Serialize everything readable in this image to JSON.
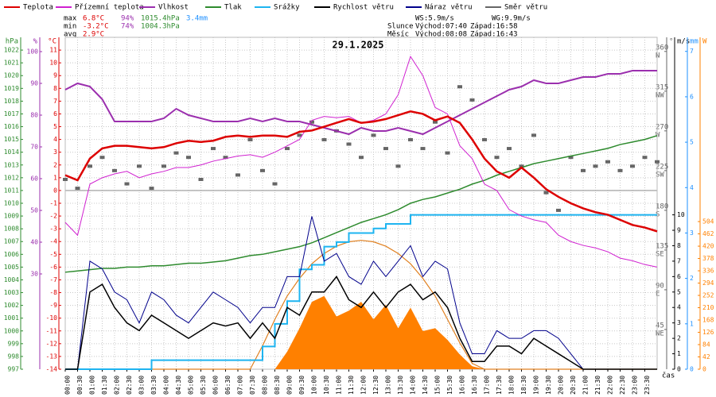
{
  "chart_data": {
    "type": "line",
    "title": "29.1.2025",
    "x_label": "čas",
    "x": [
      0,
      0.5,
      1,
      1.5,
      2,
      2.5,
      3,
      3.5,
      4,
      4.5,
      5,
      5.5,
      6,
      6.5,
      7,
      7.5,
      8,
      8.5,
      9,
      9.5,
      10,
      10.5,
      11,
      11.5,
      12,
      12.5,
      13,
      13.5,
      14,
      14.5,
      15,
      15.5,
      16,
      16.5,
      17,
      17.5,
      18,
      18.5,
      19,
      19.5,
      20,
      20.5,
      21,
      21.5,
      22,
      22.5,
      23,
      23.5,
      24
    ],
    "xlim": [
      0,
      24
    ],
    "xticks": [
      {
        "value": 0,
        "label": "00:00"
      },
      {
        "value": 0.5,
        "label": "00:30"
      },
      {
        "value": 1,
        "label": "01:00"
      },
      {
        "value": 1.5,
        "label": "01:30"
      },
      {
        "value": 2,
        "label": "02:00"
      },
      {
        "value": 2.5,
        "label": "02:30"
      },
      {
        "value": 3,
        "label": "03:00"
      },
      {
        "value": 3.5,
        "label": "03:30"
      },
      {
        "value": 4,
        "label": "04:00"
      },
      {
        "value": 4.5,
        "label": "04:30"
      },
      {
        "value": 5,
        "label": "05:00"
      },
      {
        "value": 5.5,
        "label": "05:30"
      },
      {
        "value": 6,
        "label": "06:00"
      },
      {
        "value": 6.5,
        "label": "06:30"
      },
      {
        "value": 7,
        "label": "07:00"
      },
      {
        "value": 7.5,
        "label": "07:30"
      },
      {
        "value": 8,
        "label": "08:00"
      },
      {
        "value": 8.5,
        "label": "08:30"
      },
      {
        "value": 9,
        "label": "09:00"
      },
      {
        "value": 9.5,
        "label": "09:30"
      },
      {
        "value": 10,
        "label": "10:00"
      },
      {
        "value": 10.5,
        "label": "10:30"
      },
      {
        "value": 11,
        "label": "11:00"
      },
      {
        "value": 11.5,
        "label": "11:30"
      },
      {
        "value": 12,
        "label": "12:00"
      },
      {
        "value": 12.5,
        "label": "12:30"
      },
      {
        "value": 13,
        "label": "13:00"
      },
      {
        "value": 13.5,
        "label": "13:30"
      },
      {
        "value": 14,
        "label": "14:00"
      },
      {
        "value": 14.5,
        "label": "14:30"
      },
      {
        "value": 15,
        "label": "15:00"
      },
      {
        "value": 15.5,
        "label": "15:30"
      },
      {
        "value": 16,
        "label": "16:00"
      },
      {
        "value": 16.5,
        "label": "16:30"
      },
      {
        "value": 17,
        "label": "17:00"
      },
      {
        "value": 17.5,
        "label": "17:30"
      },
      {
        "value": 18,
        "label": "18:00"
      },
      {
        "value": 18.5,
        "label": "18:30"
      },
      {
        "value": 19,
        "label": "19:00"
      },
      {
        "value": 19.5,
        "label": "19:30"
      },
      {
        "value": 20,
        "label": "20:00"
      },
      {
        "value": 20.5,
        "label": "20:30"
      },
      {
        "value": 21,
        "label": "21:00"
      },
      {
        "value": 21.5,
        "label": "21:30"
      },
      {
        "value": 22,
        "label": "22:00"
      },
      {
        "value": 22.5,
        "label": "22:30"
      },
      {
        "value": 23,
        "label": "23:00"
      },
      {
        "value": 23.5,
        "label": "23:30"
      }
    ],
    "grid": true,
    "axes": {
      "hpa": {
        "unit": "hPa",
        "color": "#2e8b2e",
        "ylim": [
          997,
          1023
        ],
        "yticks": [
          997,
          998,
          999,
          1000,
          1001,
          1002,
          1003,
          1004,
          1005,
          1006,
          1007,
          1008,
          1009,
          1010,
          1011,
          1012,
          1013,
          1014,
          1015,
          1016,
          1017,
          1018,
          1019,
          1020,
          1021,
          1022
        ]
      },
      "pct": {
        "unit": "%",
        "color": "#9b2fae",
        "ylim": [
          0,
          104.5
        ],
        "yticks": [
          30,
          40,
          50,
          60,
          70,
          80,
          90,
          100
        ]
      },
      "temp": {
        "unit": "°C",
        "color": "#dd0000",
        "ylim": [
          -14,
          12
        ],
        "yticks": [
          -14,
          -13,
          -12,
          -11,
          -10,
          -9,
          -8,
          -7,
          -6,
          -5,
          -4,
          -3,
          -2,
          -1,
          0,
          1,
          2,
          3,
          4,
          5,
          6,
          7,
          8,
          9,
          10,
          11
        ]
      },
      "dir": {
        "unit": "°",
        "color": "#666666",
        "ylim": [
          0,
          376
        ],
        "yticks": [
          45,
          90,
          135,
          180,
          225,
          270,
          315,
          360
        ],
        "ytick_names": [
          "NE",
          "E",
          "SE",
          "S",
          "SW",
          "W",
          "NW",
          "N"
        ]
      },
      "ms": {
        "unit": "m/s",
        "color": "#000000",
        "ylim": [
          0,
          21.5
        ],
        "yticks": [
          0,
          1,
          2,
          3,
          4,
          5,
          6,
          7,
          8,
          9,
          10
        ]
      },
      "mm": {
        "unit": "mm",
        "color": "#1e90ff",
        "ylim": [
          0,
          7.31
        ],
        "yticks": [
          0,
          1,
          2,
          3,
          4,
          5,
          6,
          7
        ]
      },
      "w": {
        "unit": "W",
        "color": "#ff8000",
        "ylim": [
          0,
          1133
        ],
        "yticks": [
          0,
          42,
          84,
          126,
          168,
          210,
          252,
          294,
          336,
          378,
          420,
          462,
          504
        ]
      }
    },
    "series": [
      {
        "name": "Teplota",
        "color": "#dd0000",
        "axis": "temp",
        "kind": "line",
        "width": 2.5,
        "values": [
          1.2,
          0.8,
          2.5,
          3.3,
          3.5,
          3.5,
          3.4,
          3.3,
          3.4,
          3.7,
          3.9,
          3.8,
          3.9,
          4.2,
          4.3,
          4.2,
          4.3,
          4.3,
          4.2,
          4.6,
          4.7,
          5.0,
          5.3,
          5.6,
          5.3,
          5.4,
          5.6,
          5.9,
          6.2,
          6.0,
          5.5,
          5.8,
          5.3,
          4.0,
          2.5,
          1.5,
          1.0,
          1.8,
          1.0,
          0.1,
          -0.5,
          -1.0,
          -1.4,
          -1.7,
          -1.9,
          -2.3,
          -2.7,
          -2.9,
          -3.2
        ]
      },
      {
        "name": "Přízemní teplota",
        "color": "#d020d0",
        "axis": "temp",
        "kind": "line",
        "width": 1,
        "values": [
          -2.5,
          -3.5,
          0.5,
          1.0,
          1.3,
          1.5,
          1.0,
          1.3,
          1.5,
          1.8,
          1.8,
          2.0,
          2.3,
          2.5,
          2.7,
          2.8,
          2.6,
          3.0,
          3.5,
          4.0,
          5.5,
          5.8,
          5.7,
          5.8,
          5.3,
          5.5,
          6.0,
          7.5,
          10.5,
          9.0,
          6.5,
          6.0,
          3.5,
          2.5,
          0.5,
          0.0,
          -1.5,
          -2.0,
          -2.3,
          -2.5,
          -3.5,
          -4.0,
          -4.3,
          -4.5,
          -4.8,
          -5.3,
          -5.5,
          -5.8,
          -6.0
        ]
      },
      {
        "name": "Vlhkost",
        "color": "#9b2fae",
        "axis": "pct",
        "kind": "line",
        "width": 2,
        "values": [
          88,
          90,
          89,
          85,
          78,
          78,
          78,
          78,
          79,
          82,
          80,
          79,
          78,
          78,
          78,
          79,
          78,
          79,
          78,
          78,
          77,
          76,
          75,
          74,
          76,
          75,
          75,
          76,
          75,
          74,
          76,
          78,
          80,
          82,
          84,
          86,
          88,
          89,
          91,
          90,
          90,
          91,
          92,
          92,
          93,
          93,
          94,
          94,
          94
        ]
      },
      {
        "name": "Tlak",
        "color": "#2e8b2e",
        "axis": "hpa",
        "kind": "line",
        "width": 1.5,
        "values": [
          1004.6,
          1004.7,
          1004.8,
          1004.9,
          1004.9,
          1005.0,
          1005.0,
          1005.1,
          1005.1,
          1005.2,
          1005.3,
          1005.3,
          1005.4,
          1005.5,
          1005.7,
          1005.9,
          1006.0,
          1006.2,
          1006.4,
          1006.6,
          1006.9,
          1007.3,
          1007.7,
          1008.1,
          1008.5,
          1008.8,
          1009.1,
          1009.5,
          1010.0,
          1010.3,
          1010.5,
          1010.8,
          1011.1,
          1011.5,
          1011.8,
          1012.2,
          1012.5,
          1012.8,
          1013.1,
          1013.3,
          1013.5,
          1013.7,
          1013.9,
          1014.1,
          1014.3,
          1014.6,
          1014.8,
          1015.0,
          1015.3
        ]
      },
      {
        "name": "Srážky",
        "color": "#1eb4f0",
        "axis": "mm",
        "kind": "step",
        "width": 2,
        "values": [
          0,
          0,
          0,
          0,
          0,
          0,
          0,
          0.2,
          0.2,
          0.2,
          0.2,
          0.2,
          0.2,
          0.2,
          0.2,
          0.2,
          0.5,
          1.0,
          1.5,
          2.2,
          2.3,
          2.7,
          2.8,
          3.0,
          3.0,
          3.1,
          3.2,
          3.2,
          3.4,
          3.4,
          3.4,
          3.4,
          3.4,
          3.4,
          3.4,
          3.4,
          3.4,
          3.4,
          3.4,
          3.4,
          3.4,
          3.4,
          3.4,
          3.4,
          3.4,
          3.4,
          3.4,
          3.4,
          3.4
        ]
      },
      {
        "name": "Rychlost větru",
        "color": "#000000",
        "axis": "ms",
        "kind": "line",
        "width": 1.5,
        "values": [
          0,
          0,
          5,
          5.5,
          4,
          3,
          2.5,
          3.5,
          3,
          2.5,
          2,
          2.5,
          3,
          2.8,
          3,
          2,
          3,
          2,
          4,
          3.5,
          5,
          5,
          6,
          4.5,
          4,
          5,
          4,
          5,
          5.5,
          4.5,
          5,
          4,
          2,
          0.5,
          0.5,
          1.5,
          1.5,
          1,
          2,
          1.5,
          1,
          0.5,
          0,
          0,
          0,
          0,
          0,
          0,
          0
        ]
      },
      {
        "name": "Náraz větru",
        "color": "#00008b",
        "axis": "ms",
        "kind": "line",
        "width": 1,
        "values": [
          0,
          0,
          7,
          6.5,
          5,
          4.5,
          3,
          5,
          4.5,
          3.5,
          3,
          4,
          5,
          4.5,
          4,
          3,
          4,
          4,
          6,
          6,
          9.9,
          7,
          7.5,
          6,
          5.5,
          7,
          6,
          7,
          8,
          6,
          7,
          6.5,
          3,
          1,
          1,
          2.5,
          2,
          2,
          2.5,
          2.5,
          2,
          1,
          0,
          0,
          0,
          0,
          0,
          0,
          0
        ]
      },
      {
        "name": "Směr větru",
        "color": "#666666",
        "axis": "dir",
        "kind": "scatter",
        "values": [
          215,
          205,
          230,
          240,
          225,
          210,
          230,
          205,
          230,
          245,
          240,
          215,
          250,
          240,
          220,
          260,
          225,
          210,
          250,
          265,
          280,
          260,
          270,
          255,
          240,
          265,
          250,
          230,
          260,
          250,
          280,
          245,
          320,
          305,
          260,
          240,
          250,
          230,
          265,
          200,
          180,
          240,
          225,
          230,
          235,
          225,
          230,
          240,
          235
        ]
      }
    ],
    "solar": {
      "color": "#ff8000",
      "axis": "w",
      "values": [
        0,
        0,
        0,
        0,
        0,
        0,
        0,
        0,
        0,
        0,
        0,
        0,
        0,
        0,
        0,
        0,
        0,
        0,
        60,
        140,
        230,
        250,
        180,
        200,
        230,
        170,
        220,
        140,
        210,
        130,
        140,
        100,
        50,
        10,
        0,
        0,
        0,
        0,
        0,
        0,
        0,
        0,
        0,
        0,
        0,
        0,
        0,
        0,
        0
      ]
    },
    "solar_theory": {
      "color": "#e08020",
      "axis": "w",
      "values": [
        0,
        0,
        0,
        0,
        0,
        0,
        0,
        0,
        0,
        0,
        0,
        0,
        0,
        0,
        0,
        0,
        80,
        170,
        250,
        310,
        360,
        395,
        420,
        435,
        440,
        435,
        420,
        395,
        360,
        310,
        250,
        170,
        90,
        20,
        0,
        0,
        0,
        0,
        0,
        0,
        0,
        0,
        0,
        0,
        0,
        0,
        0,
        0,
        0
      ]
    },
    "stats": [
      [
        "max",
        "6.8°C",
        "94%",
        "1015.4hPa",
        "3.4mm"
      ],
      [
        "min",
        "-3.2°C",
        "74%",
        "1004.3hPa"
      ],
      [
        "avg",
        "2.9°C"
      ]
    ],
    "info": [
      "WS:5.9m/s",
      "WG:9.9m/s",
      "Slunce",
      "Východ:07:40",
      "Západ:16:58",
      "Měsíc",
      "Východ:08:08",
      "Západ:16:43"
    ]
  }
}
